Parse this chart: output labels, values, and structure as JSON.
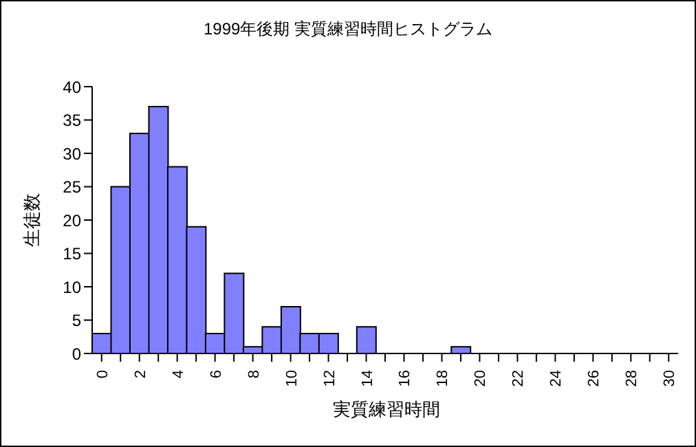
{
  "chart_data": {
    "type": "bar",
    "title": "1999年後期 実質練習時間ヒストグラム",
    "xlabel": "実質練習時間",
    "ylabel": "生徒数",
    "categories": [
      "0",
      null,
      "2",
      null,
      "4",
      null,
      "6",
      null,
      "8",
      null,
      "10",
      null,
      "12",
      null,
      "14",
      null,
      "16",
      null,
      "18",
      null,
      "20",
      null,
      "22",
      null,
      "24",
      null,
      "26",
      null,
      "28",
      null,
      "30"
    ],
    "values": [
      3,
      25,
      33,
      37,
      28,
      19,
      3,
      12,
      1,
      4,
      7,
      3,
      3,
      0,
      4,
      0,
      0,
      0,
      0,
      1,
      0,
      0,
      0,
      0,
      0,
      0,
      0,
      0,
      0,
      0,
      0
    ],
    "color": "#8080ff",
    "ylim": [
      0,
      40
    ],
    "yticks": [
      0,
      5,
      10,
      15,
      20,
      25,
      30,
      35,
      40
    ]
  }
}
